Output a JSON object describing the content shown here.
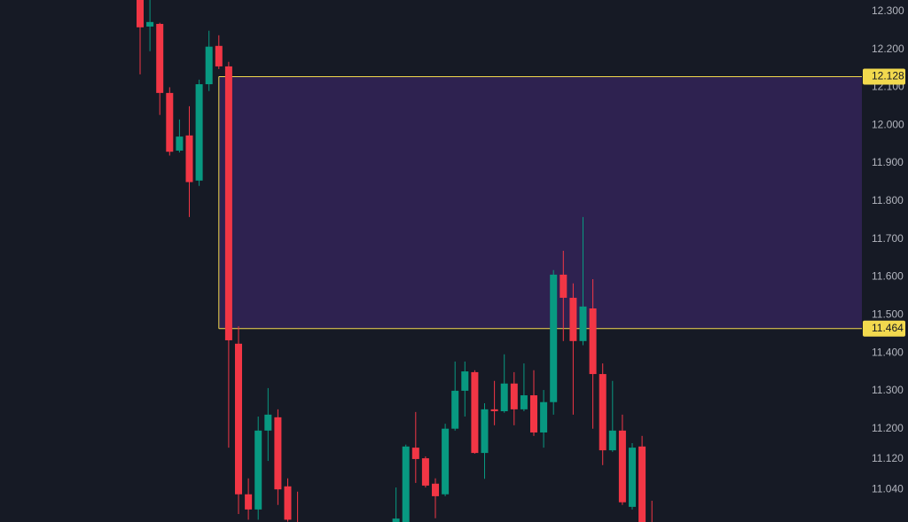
{
  "chart_data": {
    "type": "candlestick",
    "categories": [
      null,
      null,
      null,
      null,
      null,
      null,
      null,
      null,
      null,
      null,
      null,
      null,
      null,
      null,
      null,
      null,
      null,
      null,
      null,
      null,
      null,
      null,
      null,
      null,
      null,
      null,
      null,
      null,
      null,
      null,
      null,
      null,
      null,
      null,
      null,
      null,
      null,
      null,
      null,
      null,
      null,
      null,
      null,
      null,
      null,
      null,
      null,
      null,
      null,
      null,
      null,
      null,
      null
    ],
    "open": [
      12.34,
      12.26,
      12.267,
      12.085,
      11.933,
      11.973,
      11.854,
      12.108,
      12.209,
      12.155,
      11.424,
      11.027,
      10.987,
      11.195,
      11.23,
      11.048,
      10.94,
      null,
      null,
      null,
      null,
      null,
      null,
      null,
      null,
      null,
      10.94,
      10.95,
      11.15,
      11.122,
      11.055,
      11.027,
      11.2,
      11.3,
      11.349,
      11.136,
      11.251,
      11.246,
      11.319,
      11.251,
      11.288,
      11.19,
      11.27,
      11.606,
      11.545,
      11.431,
      11.517,
      11.344,
      11.143,
      11.195,
      10.994,
      11.153,
      10.95
    ],
    "high": [
      12.36,
      12.33,
      12.27,
      12.1,
      12.015,
      12.05,
      12.12,
      12.249,
      12.237,
      12.167,
      11.47,
      11.069,
      11.232,
      11.307,
      11.251,
      11.069,
      11.034,
      null,
      null,
      null,
      null,
      null,
      null,
      null,
      null,
      null,
      11.045,
      11.158,
      11.244,
      11.127,
      11.069,
      11.213,
      11.377,
      11.377,
      11.354,
      11.267,
      11.326,
      11.396,
      11.349,
      11.372,
      11.354,
      11.302,
      11.618,
      11.669,
      11.583,
      11.758,
      11.594,
      11.372,
      11.326,
      11.237,
      11.162,
      11.181,
      11.01
    ],
    "low": [
      12.134,
      12.195,
      12.027,
      11.92,
      11.928,
      11.758,
      11.84,
      12.09,
      12.148,
      11.15,
      10.975,
      10.96,
      10.96,
      11.115,
      10.999,
      10.955,
      10.9,
      null,
      null,
      null,
      null,
      null,
      null,
      null,
      null,
      null,
      10.92,
      10.93,
      11.057,
      11.045,
      10.964,
      11.022,
      11.195,
      11.232,
      11.134,
      11.068,
      11.209,
      11.242,
      11.209,
      11.246,
      11.181,
      11.15,
      11.237,
      11.431,
      11.237,
      11.42,
      11.2,
      11.104,
      11.139,
      10.999,
      10.987,
      10.94,
      10.92
    ],
    "close": [
      12.258,
      12.272,
      12.085,
      11.93,
      11.97,
      11.85,
      12.108,
      12.207,
      12.155,
      11.433,
      11.027,
      10.987,
      11.195,
      11.237,
      11.04,
      10.96,
      10.9,
      null,
      null,
      null,
      null,
      null,
      null,
      null,
      null,
      null,
      10.963,
      11.153,
      11.12,
      11.05,
      11.022,
      11.2,
      11.3,
      11.351,
      11.136,
      11.251,
      11.246,
      11.319,
      11.251,
      11.288,
      11.19,
      11.27,
      11.606,
      11.545,
      11.431,
      11.522,
      11.344,
      11.143,
      11.195,
      11.006,
      11.15,
      10.95,
      10.93
    ],
    "up_color": "#089981",
    "down_color": "#f23645",
    "ylim": [
      10.954,
      12.33
    ],
    "yticks": [
      {
        "value": 12.3,
        "label": "12.300"
      },
      {
        "value": 12.2,
        "label": "12.200"
      },
      {
        "value": 12.1,
        "label": "12.100"
      },
      {
        "value": 12.0,
        "label": "12.000"
      },
      {
        "value": 11.9,
        "label": "11.900"
      },
      {
        "value": 11.8,
        "label": "11.800"
      },
      {
        "value": 11.7,
        "label": "11.700"
      },
      {
        "value": 11.6,
        "label": "11.600"
      },
      {
        "value": 11.5,
        "label": "11.500"
      },
      {
        "value": 11.4,
        "label": "11.400"
      },
      {
        "value": 11.3,
        "label": "11.300"
      },
      {
        "value": 11.2,
        "label": "11.200"
      },
      {
        "value": 11.12,
        "label": "11.120"
      },
      {
        "value": 11.04,
        "label": "11.040"
      }
    ],
    "zone": {
      "top": 12.128,
      "bottom": 11.464,
      "color": "#2e2250",
      "border_color": "#f2d94e"
    }
  }
}
